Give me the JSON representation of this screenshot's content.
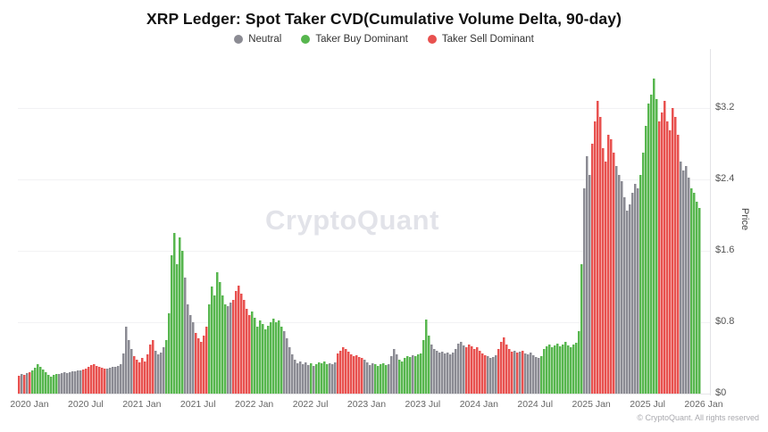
{
  "header": {
    "title": "XRP Ledger: Spot Taker CVD(Cumulative Volume Delta, 90-day)"
  },
  "legend": [
    {
      "label": "Neutral",
      "color": "#8b8b93"
    },
    {
      "label": "Taker Buy Dominant",
      "color": "#57b64e"
    },
    {
      "label": "Taker Sell Dominant",
      "color": "#e8514f"
    }
  ],
  "watermark": "CryptoQuant",
  "footer": "© CryptoQuant. All rights reserved",
  "chart_data": {
    "type": "bar",
    "title": "XRP Ledger: Spot Taker CVD(Cumulative Volume Delta, 90-day)",
    "xlabel": "",
    "ylabel": "Price",
    "ylim": [
      0,
      3.83
    ],
    "grid": true,
    "legend_position": "top",
    "y_ticks": [
      {
        "value": 0,
        "label": "$0"
      },
      {
        "value": 0.8,
        "label": "$0.8"
      },
      {
        "value": 1.6,
        "label": "$1.6"
      },
      {
        "value": 2.4,
        "label": "$2.4"
      },
      {
        "value": 3.2,
        "label": "$3.2"
      }
    ],
    "x_ticks": [
      "2020 Jan",
      "2020 Jul",
      "2021 Jan",
      "2021 Jul",
      "2022 Jan",
      "2022 Jul",
      "2023 Jan",
      "2023 Jul",
      "2024 Jan",
      "2024 Jul",
      "2025 Jan",
      "2025 Jul",
      "2026 Jan"
    ],
    "colors": {
      "neutral": "#8b8b93",
      "buy": "#57b64e",
      "sell": "#e8514f"
    },
    "series_note": "bars = [price_usd, regime] where regime 0=Neutral, 1=Taker Buy Dominant, 2=Taker Sell Dominant",
    "bars": [
      [
        0.2,
        2
      ],
      [
        0.22,
        0
      ],
      [
        0.21,
        2
      ],
      [
        0.23,
        0
      ],
      [
        0.24,
        2
      ],
      [
        0.26,
        1
      ],
      [
        0.29,
        1
      ],
      [
        0.33,
        1
      ],
      [
        0.3,
        1
      ],
      [
        0.27,
        1
      ],
      [
        0.24,
        1
      ],
      [
        0.21,
        1
      ],
      [
        0.19,
        1
      ],
      [
        0.21,
        1
      ],
      [
        0.22,
        1
      ],
      [
        0.22,
        0
      ],
      [
        0.23,
        0
      ],
      [
        0.24,
        0
      ],
      [
        0.23,
        0
      ],
      [
        0.24,
        0
      ],
      [
        0.25,
        0
      ],
      [
        0.25,
        0
      ],
      [
        0.26,
        0
      ],
      [
        0.26,
        0
      ],
      [
        0.27,
        2
      ],
      [
        0.28,
        2
      ],
      [
        0.3,
        2
      ],
      [
        0.32,
        2
      ],
      [
        0.33,
        2
      ],
      [
        0.31,
        2
      ],
      [
        0.3,
        2
      ],
      [
        0.29,
        2
      ],
      [
        0.28,
        2
      ],
      [
        0.28,
        0
      ],
      [
        0.29,
        0
      ],
      [
        0.3,
        0
      ],
      [
        0.3,
        0
      ],
      [
        0.31,
        0
      ],
      [
        0.33,
        0
      ],
      [
        0.45,
        0
      ],
      [
        0.75,
        0
      ],
      [
        0.6,
        0
      ],
      [
        0.5,
        0
      ],
      [
        0.42,
        2
      ],
      [
        0.38,
        2
      ],
      [
        0.35,
        2
      ],
      [
        0.4,
        2
      ],
      [
        0.36,
        2
      ],
      [
        0.44,
        2
      ],
      [
        0.55,
        2
      ],
      [
        0.6,
        2
      ],
      [
        0.48,
        0
      ],
      [
        0.44,
        0
      ],
      [
        0.46,
        0
      ],
      [
        0.52,
        0
      ],
      [
        0.6,
        1
      ],
      [
        0.9,
        1
      ],
      [
        1.55,
        1
      ],
      [
        1.8,
        1
      ],
      [
        1.45,
        1
      ],
      [
        1.75,
        1
      ],
      [
        1.6,
        1
      ],
      [
        1.3,
        0
      ],
      [
        1.0,
        0
      ],
      [
        0.88,
        0
      ],
      [
        0.8,
        0
      ],
      [
        0.68,
        2
      ],
      [
        0.62,
        2
      ],
      [
        0.58,
        2
      ],
      [
        0.65,
        2
      ],
      [
        0.75,
        2
      ],
      [
        1.0,
        1
      ],
      [
        1.2,
        1
      ],
      [
        1.1,
        1
      ],
      [
        1.36,
        1
      ],
      [
        1.25,
        1
      ],
      [
        1.1,
        1
      ],
      [
        1.0,
        1
      ],
      [
        0.98,
        0
      ],
      [
        1.02,
        0
      ],
      [
        1.05,
        2
      ],
      [
        1.15,
        2
      ],
      [
        1.21,
        2
      ],
      [
        1.12,
        2
      ],
      [
        1.05,
        2
      ],
      [
        0.95,
        2
      ],
      [
        0.88,
        2
      ],
      [
        0.92,
        1
      ],
      [
        0.85,
        1
      ],
      [
        0.75,
        1
      ],
      [
        0.82,
        1
      ],
      [
        0.78,
        1
      ],
      [
        0.72,
        1
      ],
      [
        0.76,
        1
      ],
      [
        0.8,
        1
      ],
      [
        0.84,
        1
      ],
      [
        0.8,
        1
      ],
      [
        0.82,
        1
      ],
      [
        0.75,
        1
      ],
      [
        0.7,
        0
      ],
      [
        0.62,
        0
      ],
      [
        0.52,
        0
      ],
      [
        0.44,
        0
      ],
      [
        0.38,
        0
      ],
      [
        0.34,
        0
      ],
      [
        0.36,
        0
      ],
      [
        0.33,
        0
      ],
      [
        0.35,
        0
      ],
      [
        0.32,
        0
      ],
      [
        0.34,
        1
      ],
      [
        0.31,
        0
      ],
      [
        0.33,
        1
      ],
      [
        0.35,
        1
      ],
      [
        0.34,
        1
      ],
      [
        0.36,
        1
      ],
      [
        0.33,
        1
      ],
      [
        0.34,
        0
      ],
      [
        0.33,
        0
      ],
      [
        0.35,
        0
      ],
      [
        0.45,
        2
      ],
      [
        0.48,
        2
      ],
      [
        0.52,
        2
      ],
      [
        0.5,
        2
      ],
      [
        0.47,
        2
      ],
      [
        0.44,
        2
      ],
      [
        0.42,
        2
      ],
      [
        0.43,
        2
      ],
      [
        0.41,
        2
      ],
      [
        0.4,
        2
      ],
      [
        0.38,
        0
      ],
      [
        0.35,
        0
      ],
      [
        0.32,
        0
      ],
      [
        0.34,
        0
      ],
      [
        0.33,
        1
      ],
      [
        0.31,
        1
      ],
      [
        0.33,
        1
      ],
      [
        0.34,
        1
      ],
      [
        0.32,
        1
      ],
      [
        0.33,
        0
      ],
      [
        0.42,
        0
      ],
      [
        0.5,
        0
      ],
      [
        0.44,
        0
      ],
      [
        0.38,
        1
      ],
      [
        0.36,
        1
      ],
      [
        0.4,
        1
      ],
      [
        0.42,
        1
      ],
      [
        0.41,
        1
      ],
      [
        0.43,
        0
      ],
      [
        0.42,
        1
      ],
      [
        0.44,
        1
      ],
      [
        0.45,
        1
      ],
      [
        0.6,
        1
      ],
      [
        0.83,
        1
      ],
      [
        0.65,
        1
      ],
      [
        0.55,
        0
      ],
      [
        0.5,
        0
      ],
      [
        0.48,
        0
      ],
      [
        0.46,
        0
      ],
      [
        0.47,
        0
      ],
      [
        0.45,
        0
      ],
      [
        0.46,
        0
      ],
      [
        0.44,
        0
      ],
      [
        0.46,
        0
      ],
      [
        0.5,
        0
      ],
      [
        0.56,
        0
      ],
      [
        0.58,
        0
      ],
      [
        0.54,
        0
      ],
      [
        0.52,
        2
      ],
      [
        0.55,
        2
      ],
      [
        0.53,
        2
      ],
      [
        0.5,
        2
      ],
      [
        0.52,
        2
      ],
      [
        0.48,
        2
      ],
      [
        0.45,
        2
      ],
      [
        0.43,
        2
      ],
      [
        0.42,
        0
      ],
      [
        0.4,
        0
      ],
      [
        0.41,
        0
      ],
      [
        0.43,
        0
      ],
      [
        0.5,
        2
      ],
      [
        0.58,
        2
      ],
      [
        0.63,
        2
      ],
      [
        0.55,
        2
      ],
      [
        0.5,
        2
      ],
      [
        0.47,
        2
      ],
      [
        0.48,
        0
      ],
      [
        0.46,
        2
      ],
      [
        0.47,
        0
      ],
      [
        0.48,
        2
      ],
      [
        0.45,
        0
      ],
      [
        0.44,
        0
      ],
      [
        0.46,
        0
      ],
      [
        0.43,
        0
      ],
      [
        0.41,
        0
      ],
      [
        0.4,
        0
      ],
      [
        0.42,
        1
      ],
      [
        0.5,
        1
      ],
      [
        0.53,
        1
      ],
      [
        0.55,
        1
      ],
      [
        0.52,
        1
      ],
      [
        0.54,
        1
      ],
      [
        0.56,
        1
      ],
      [
        0.53,
        1
      ],
      [
        0.55,
        1
      ],
      [
        0.58,
        1
      ],
      [
        0.54,
        1
      ],
      [
        0.52,
        1
      ],
      [
        0.55,
        1
      ],
      [
        0.57,
        1
      ],
      [
        0.7,
        1
      ],
      [
        1.45,
        1
      ],
      [
        2.3,
        0
      ],
      [
        2.66,
        0
      ],
      [
        2.45,
        0
      ],
      [
        2.8,
        2
      ],
      [
        3.05,
        2
      ],
      [
        3.28,
        2
      ],
      [
        3.1,
        2
      ],
      [
        2.75,
        2
      ],
      [
        2.6,
        2
      ],
      [
        2.9,
        2
      ],
      [
        2.85,
        2
      ],
      [
        2.7,
        2
      ],
      [
        2.55,
        0
      ],
      [
        2.45,
        0
      ],
      [
        2.38,
        0
      ],
      [
        2.2,
        0
      ],
      [
        2.05,
        0
      ],
      [
        2.12,
        0
      ],
      [
        2.25,
        0
      ],
      [
        2.35,
        0
      ],
      [
        2.3,
        0
      ],
      [
        2.45,
        1
      ],
      [
        2.7,
        1
      ],
      [
        3.0,
        1
      ],
      [
        3.25,
        1
      ],
      [
        3.35,
        1
      ],
      [
        3.53,
        1
      ],
      [
        3.3,
        1
      ],
      [
        3.05,
        2
      ],
      [
        3.15,
        2
      ],
      [
        3.28,
        2
      ],
      [
        3.05,
        2
      ],
      [
        2.95,
        2
      ],
      [
        3.2,
        2
      ],
      [
        3.1,
        2
      ],
      [
        2.9,
        2
      ],
      [
        2.6,
        0
      ],
      [
        2.5,
        0
      ],
      [
        2.55,
        0
      ],
      [
        2.42,
        0
      ],
      [
        2.3,
        1
      ],
      [
        2.25,
        1
      ],
      [
        2.15,
        1
      ],
      [
        2.08,
        1
      ]
    ]
  }
}
